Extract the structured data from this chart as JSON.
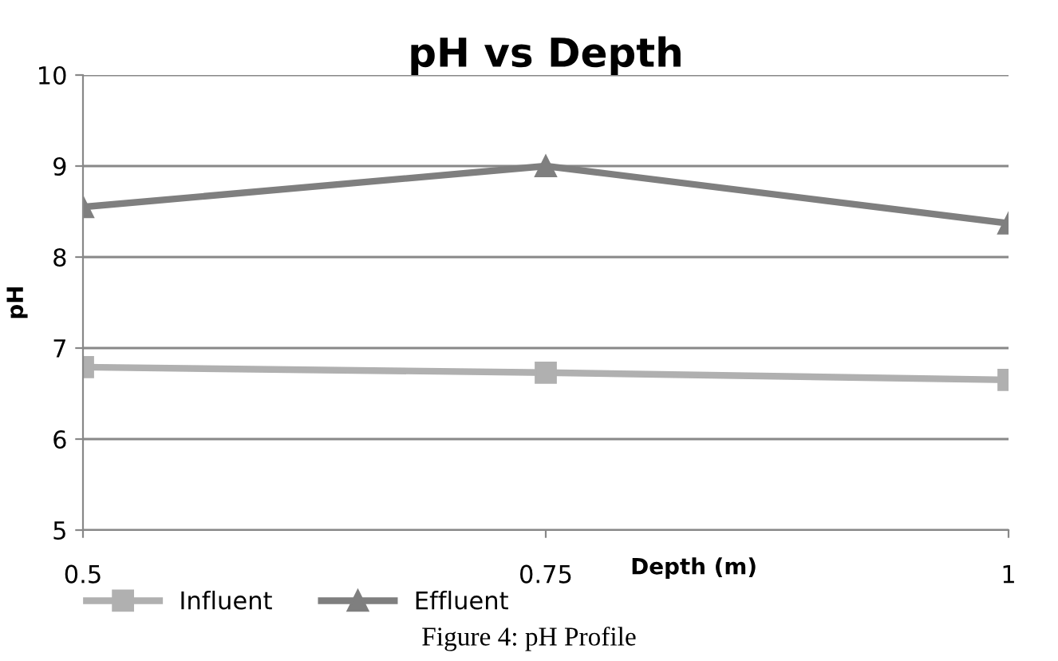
{
  "chart_data": {
    "type": "line",
    "title": "pH vs Depth",
    "xlabel": "Depth (m)",
    "ylabel": "pH",
    "x": [
      0.5,
      0.75,
      1
    ],
    "series": [
      {
        "name": "Influent",
        "color": "#b0b0b0",
        "marker": "square",
        "values": [
          6.79,
          6.73,
          6.65
        ]
      },
      {
        "name": "Effluent",
        "color": "#7f7f7f",
        "marker": "triangle",
        "values": [
          8.55,
          9.0,
          8.37
        ]
      }
    ],
    "xlim": [
      0.5,
      1
    ],
    "xticks": [
      0.5,
      0.75,
      1
    ],
    "ylim": [
      5,
      10
    ],
    "yticks": [
      5,
      6,
      7,
      8,
      9,
      10
    ],
    "grid": "y",
    "legend": "bottom left",
    "line_style": "solid",
    "annotations": [
      "Figure 4: pH Profile"
    ]
  }
}
